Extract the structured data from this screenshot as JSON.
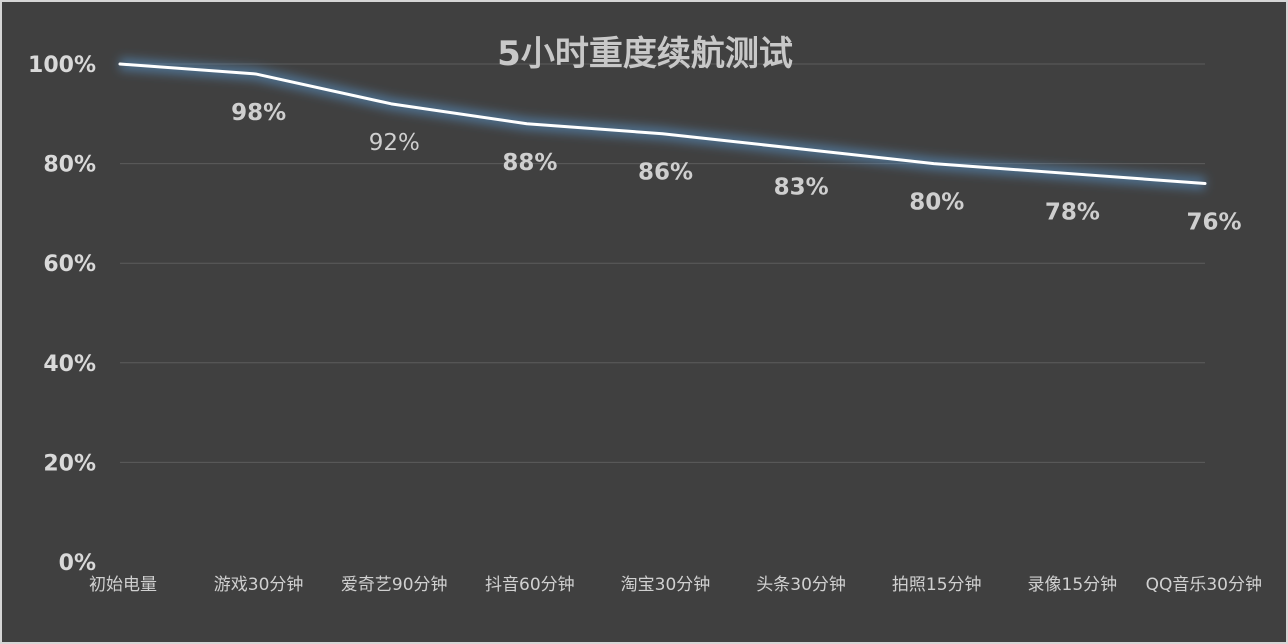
{
  "chart_data": {
    "type": "line",
    "title": "5小时重度续航测试",
    "categories": [
      "初始电量",
      "游戏30分钟",
      "爱奇艺90分钟",
      "抖音60分钟",
      "淘宝30分钟",
      "头条30分钟",
      "拍照15分钟",
      "录像15分钟",
      "QQ音乐30分钟"
    ],
    "series": [
      {
        "values": [
          100,
          98,
          92,
          88,
          86,
          83,
          80,
          78,
          76
        ]
      }
    ],
    "data_labels": [
      "",
      "98%",
      "92%",
      "88%",
      "86%",
      "83%",
      "80%",
      "78%",
      "76%"
    ],
    "y_ticks": [
      "0%",
      "20%",
      "40%",
      "60%",
      "80%",
      "100%"
    ],
    "ylim": [
      0,
      100
    ],
    "grid": true,
    "legend": "none",
    "colors": {
      "background": "#404040",
      "line": "#ffffff",
      "glow": "#5b9bd5",
      "text": "#d9d9d9"
    }
  }
}
